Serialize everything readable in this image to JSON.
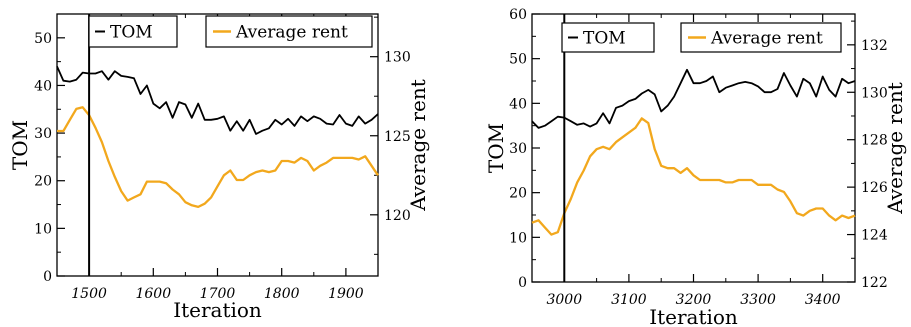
{
  "chart_data": [
    {
      "type": "line",
      "xlabel": "Iteration",
      "ylabel": "TOM",
      "y2label": "Average rent",
      "xlim": [
        1450,
        1950
      ],
      "ylim": [
        0,
        55
      ],
      "y2lim": [
        116.13,
        132.7
      ],
      "xticks": [
        "1500",
        "1600",
        "1700",
        "1800",
        "1900"
      ],
      "yticks": [
        "0",
        "10",
        "20",
        "30",
        "40",
        "50"
      ],
      "y2ticks": [
        "120",
        "125",
        "130"
      ],
      "marker_x": 1500,
      "legend_placement": "top",
      "series": [
        {
          "name": "TOM",
          "axis": "left",
          "color": "#000000",
          "x": [
            1450,
            1460,
            1470,
            1480,
            1490,
            1500,
            1510,
            1520,
            1530,
            1540,
            1550,
            1560,
            1570,
            1580,
            1590,
            1600,
            1610,
            1620,
            1630,
            1640,
            1650,
            1660,
            1670,
            1680,
            1690,
            1700,
            1710,
            1720,
            1730,
            1740,
            1750,
            1760,
            1770,
            1780,
            1790,
            1800,
            1810,
            1820,
            1830,
            1840,
            1850,
            1860,
            1870,
            1880,
            1890,
            1900,
            1910,
            1920,
            1930,
            1940,
            1950
          ],
          "y": [
            44,
            41,
            40.8,
            41.2,
            42.7,
            42.5,
            42.5,
            43,
            41.2,
            43,
            42,
            41.8,
            41.5,
            38.2,
            40,
            36.2,
            35.2,
            36.5,
            33.2,
            36.5,
            36,
            33.2,
            36.2,
            32.8,
            32.8,
            33,
            33.5,
            30.5,
            32.5,
            30.5,
            32.8,
            29.8,
            30.5,
            31,
            32.8,
            31.8,
            33,
            31.5,
            33.5,
            32.5,
            33.5,
            33,
            32,
            31.8,
            33.8,
            32,
            31.5,
            33.5,
            32,
            32.8,
            34
          ]
        },
        {
          "name": "Average rent",
          "axis": "right",
          "color": "#f2a81d",
          "x": [
            1450,
            1460,
            1470,
            1480,
            1490,
            1500,
            1510,
            1520,
            1530,
            1540,
            1550,
            1560,
            1570,
            1580,
            1590,
            1600,
            1610,
            1620,
            1630,
            1640,
            1650,
            1660,
            1670,
            1680,
            1690,
            1700,
            1710,
            1720,
            1730,
            1740,
            1750,
            1760,
            1770,
            1780,
            1790,
            1800,
            1810,
            1820,
            1830,
            1840,
            1850,
            1860,
            1870,
            1880,
            1890,
            1900,
            1910,
            1920,
            1930,
            1940,
            1950
          ],
          "y": [
            125.3,
            125.3,
            126,
            126.7,
            126.8,
            126.3,
            125.5,
            124.6,
            123.4,
            122.4,
            121.5,
            120.9,
            121.1,
            121.3,
            122.1,
            122.1,
            122.1,
            122,
            121.6,
            121.3,
            120.8,
            120.6,
            120.5,
            120.7,
            121.1,
            121.8,
            122.5,
            122.8,
            122.2,
            122.2,
            122.5,
            122.7,
            122.8,
            122.7,
            122.8,
            123.4,
            123.4,
            123.3,
            123.6,
            123.4,
            122.8,
            123.1,
            123.3,
            123.6,
            123.6,
            123.6,
            123.6,
            123.5,
            123.7,
            123.1,
            122.5
          ]
        }
      ]
    },
    {
      "type": "line",
      "xlabel": "Iteration",
      "ylabel": "TOM",
      "y2label": "Average rent",
      "xlim": [
        2950,
        3450
      ],
      "ylim": [
        0,
        60
      ],
      "y2lim": [
        122,
        133.3
      ],
      "xticks": [
        "3000",
        "3100",
        "3200",
        "3300",
        "3400"
      ],
      "yticks": [
        "0",
        "10",
        "20",
        "30",
        "40",
        "50",
        "60"
      ],
      "y2ticks": [
        "122",
        "124",
        "126",
        "128",
        "130",
        "132"
      ],
      "marker_x": 3000,
      "legend_placement": "top",
      "series": [
        {
          "name": "TOM",
          "axis": "left",
          "color": "#000000",
          "x": [
            2950,
            2960,
            2970,
            2980,
            2990,
            3000,
            3010,
            3020,
            3030,
            3040,
            3050,
            3060,
            3070,
            3080,
            3090,
            3100,
            3110,
            3120,
            3130,
            3140,
            3150,
            3160,
            3170,
            3180,
            3190,
            3200,
            3210,
            3220,
            3230,
            3240,
            3250,
            3260,
            3270,
            3280,
            3290,
            3300,
            3310,
            3320,
            3330,
            3340,
            3350,
            3360,
            3370,
            3380,
            3390,
            3400,
            3410,
            3420,
            3430,
            3440,
            3450
          ],
          "y": [
            36,
            34.5,
            35,
            36,
            37,
            36.8,
            36,
            35.2,
            35.5,
            34.8,
            35.5,
            37.8,
            35.5,
            39,
            39.5,
            40.5,
            41,
            42.2,
            43,
            42,
            38.2,
            39.5,
            41.5,
            44.5,
            47.5,
            44.5,
            44.5,
            45,
            46,
            42.5,
            43.5,
            44,
            44.5,
            44.8,
            44.5,
            43.8,
            42.5,
            42.5,
            43.2,
            46.8,
            44,
            41.5,
            45.5,
            44.5,
            41.5,
            46,
            43,
            41.5,
            45.5,
            44.5,
            45
          ]
        },
        {
          "name": "Average rent",
          "axis": "right",
          "color": "#f2a81d",
          "x": [
            2950,
            2960,
            2970,
            2980,
            2990,
            3000,
            3010,
            3020,
            3030,
            3040,
            3050,
            3060,
            3070,
            3080,
            3090,
            3100,
            3110,
            3120,
            3130,
            3140,
            3150,
            3160,
            3170,
            3180,
            3190,
            3200,
            3210,
            3220,
            3230,
            3240,
            3250,
            3260,
            3270,
            3280,
            3290,
            3300,
            3310,
            3320,
            3330,
            3340,
            3350,
            3360,
            3370,
            3380,
            3390,
            3400,
            3410,
            3420,
            3430,
            3440,
            3450
          ],
          "y": [
            124.5,
            124.6,
            124.3,
            124,
            124.1,
            124.9,
            125.5,
            126.2,
            126.7,
            127.3,
            127.6,
            127.7,
            127.6,
            127.9,
            128.1,
            128.3,
            128.5,
            128.9,
            128.7,
            127.6,
            126.9,
            126.8,
            126.8,
            126.6,
            126.8,
            126.5,
            126.3,
            126.3,
            126.3,
            126.3,
            126.2,
            126.2,
            126.3,
            126.3,
            126.3,
            126.1,
            126.1,
            126.1,
            125.9,
            125.8,
            125.4,
            124.9,
            124.8,
            125,
            125.1,
            125.1,
            124.8,
            124.6,
            124.8,
            124.7,
            124.8
          ]
        }
      ]
    }
  ]
}
